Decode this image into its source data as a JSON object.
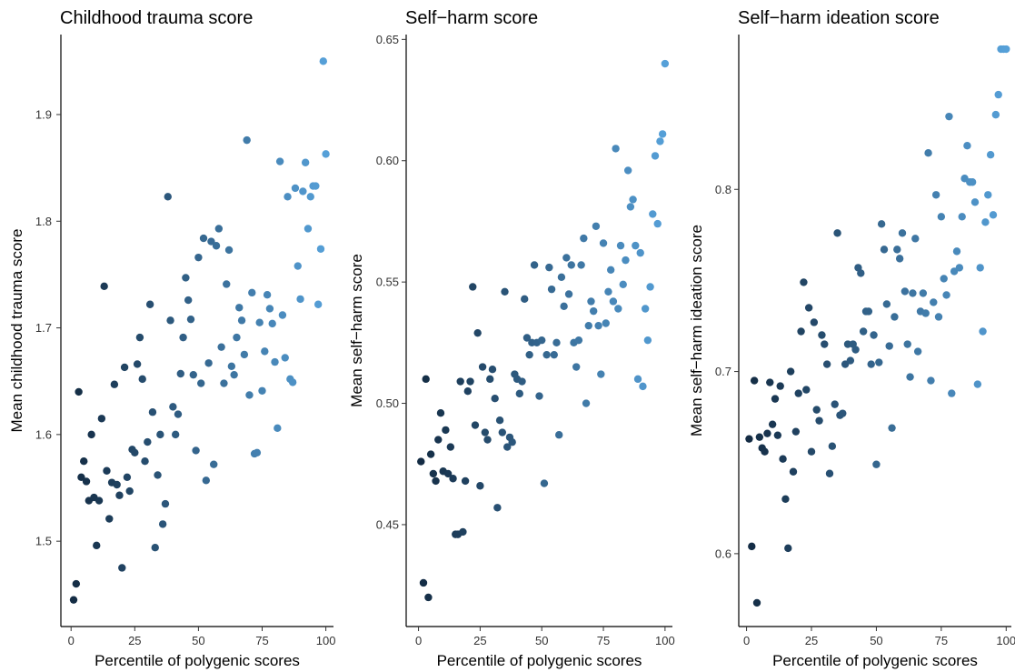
{
  "chart_data": [
    {
      "type": "scatter",
      "title": "Childhood trauma score",
      "xlabel": "Percentile of polygenic scores",
      "ylabel": "Mean childhood trauma score",
      "xlim": [
        -4,
        103
      ],
      "ylim": [
        1.42,
        1.975
      ],
      "xticks": [
        0,
        25,
        50,
        75,
        100
      ],
      "yticks": [
        1.5,
        1.6,
        1.7,
        1.8,
        1.9
      ],
      "ytick_labels": [
        "1.5",
        "1.6",
        "1.7",
        "1.8",
        "1.9"
      ],
      "grid": false,
      "legend": "none",
      "color_scale": {
        "low": "#132b43",
        "high": "#56a0d8"
      },
      "points": [
        [
          1,
          1.445
        ],
        [
          2,
          1.46
        ],
        [
          3,
          1.64
        ],
        [
          4,
          1.56
        ],
        [
          5,
          1.575
        ],
        [
          6,
          1.556
        ],
        [
          7,
          1.538
        ],
        [
          8,
          1.6
        ],
        [
          9,
          1.541
        ],
        [
          10,
          1.496
        ],
        [
          11,
          1.538
        ],
        [
          12,
          1.615
        ],
        [
          13,
          1.739
        ],
        [
          14,
          1.566
        ],
        [
          15,
          1.521
        ],
        [
          16,
          1.555
        ],
        [
          17,
          1.647
        ],
        [
          18,
          1.553
        ],
        [
          19,
          1.543
        ],
        [
          20,
          1.475
        ],
        [
          21,
          1.663
        ],
        [
          22,
          1.56
        ],
        [
          23,
          1.547
        ],
        [
          24,
          1.586
        ],
        [
          25,
          1.583
        ],
        [
          26,
          1.666
        ],
        [
          27,
          1.691
        ],
        [
          28,
          1.652
        ],
        [
          29,
          1.575
        ],
        [
          30,
          1.593
        ],
        [
          31,
          1.722
        ],
        [
          32,
          1.621
        ],
        [
          33,
          1.494
        ],
        [
          34,
          1.562
        ],
        [
          35,
          1.6
        ],
        [
          36,
          1.516
        ],
        [
          37,
          1.535
        ],
        [
          38,
          1.823
        ],
        [
          39,
          1.707
        ],
        [
          40,
          1.626
        ],
        [
          41,
          1.6
        ],
        [
          42,
          1.619
        ],
        [
          43,
          1.657
        ],
        [
          44,
          1.691
        ],
        [
          45,
          1.747
        ],
        [
          46,
          1.726
        ],
        [
          47,
          1.708
        ],
        [
          48,
          1.656
        ],
        [
          49,
          1.585
        ],
        [
          50,
          1.766
        ],
        [
          51,
          1.648
        ],
        [
          52,
          1.784
        ],
        [
          53,
          1.557
        ],
        [
          54,
          1.667
        ],
        [
          55,
          1.781
        ],
        [
          56,
          1.572
        ],
        [
          57,
          1.777
        ],
        [
          58,
          1.793
        ],
        [
          59,
          1.682
        ],
        [
          60,
          1.648
        ],
        [
          61,
          1.741
        ],
        [
          62,
          1.773
        ],
        [
          63,
          1.664
        ],
        [
          64,
          1.656
        ],
        [
          65,
          1.691
        ],
        [
          66,
          1.719
        ],
        [
          67,
          1.707
        ],
        [
          68,
          1.675
        ],
        [
          69,
          1.876
        ],
        [
          70,
          1.637
        ],
        [
          71,
          1.733
        ],
        [
          72,
          1.582
        ],
        [
          73,
          1.583
        ],
        [
          74,
          1.705
        ],
        [
          75,
          1.641
        ],
        [
          76,
          1.678
        ],
        [
          77,
          1.731
        ],
        [
          78,
          1.718
        ],
        [
          79,
          1.704
        ],
        [
          80,
          1.668
        ],
        [
          81,
          1.606
        ],
        [
          82,
          1.856
        ],
        [
          83,
          1.712
        ],
        [
          84,
          1.672
        ],
        [
          85,
          1.823
        ],
        [
          86,
          1.652
        ],
        [
          87,
          1.649
        ],
        [
          88,
          1.831
        ],
        [
          89,
          1.758
        ],
        [
          90,
          1.727
        ],
        [
          91,
          1.828
        ],
        [
          92,
          1.855
        ],
        [
          93,
          1.793
        ],
        [
          94,
          1.823
        ],
        [
          95,
          1.833
        ],
        [
          96,
          1.833
        ],
        [
          97,
          1.722
        ],
        [
          98,
          1.774
        ],
        [
          99,
          1.95
        ],
        [
          100,
          1.863
        ]
      ]
    },
    {
      "type": "scatter",
      "title": "Self−harm score",
      "xlabel": "Percentile of polygenic scores",
      "ylabel": "Mean self−harm score",
      "xlim": [
        -5,
        103
      ],
      "ylim": [
        0.408,
        0.652
      ],
      "xticks": [
        0,
        25,
        50,
        75,
        100
      ],
      "yticks": [
        0.45,
        0.5,
        0.55,
        0.6,
        0.65
      ],
      "ytick_labels": [
        "0.45",
        "0.50",
        "0.55",
        "0.60",
        "0.65"
      ],
      "grid": false,
      "legend": "none",
      "color_scale": {
        "low": "#132b43",
        "high": "#56a0d8"
      },
      "points": [
        [
          1,
          0.476
        ],
        [
          2,
          0.426
        ],
        [
          3,
          0.51
        ],
        [
          4,
          0.42
        ],
        [
          5,
          0.479
        ],
        [
          6,
          0.471
        ],
        [
          7,
          0.468
        ],
        [
          8,
          0.485
        ],
        [
          9,
          0.496
        ],
        [
          10,
          0.472
        ],
        [
          11,
          0.489
        ],
        [
          12,
          0.471
        ],
        [
          13,
          0.482
        ],
        [
          14,
          0.469
        ],
        [
          15,
          0.446
        ],
        [
          16,
          0.446
        ],
        [
          17,
          0.509
        ],
        [
          18,
          0.447
        ],
        [
          19,
          0.468
        ],
        [
          20,
          0.505
        ],
        [
          21,
          0.509
        ],
        [
          22,
          0.548
        ],
        [
          23,
          0.491
        ],
        [
          24,
          0.529
        ],
        [
          25,
          0.466
        ],
        [
          26,
          0.515
        ],
        [
          27,
          0.488
        ],
        [
          28,
          0.485
        ],
        [
          29,
          0.51
        ],
        [
          30,
          0.514
        ],
        [
          31,
          0.502
        ],
        [
          32,
          0.457
        ],
        [
          33,
          0.493
        ],
        [
          34,
          0.488
        ],
        [
          35,
          0.546
        ],
        [
          36,
          0.482
        ],
        [
          37,
          0.486
        ],
        [
          38,
          0.484
        ],
        [
          39,
          0.512
        ],
        [
          40,
          0.51
        ],
        [
          41,
          0.504
        ],
        [
          42,
          0.509
        ],
        [
          43,
          0.543
        ],
        [
          44,
          0.527
        ],
        [
          45,
          0.52
        ],
        [
          46,
          0.525
        ],
        [
          47,
          0.557
        ],
        [
          48,
          0.525
        ],
        [
          49,
          0.503
        ],
        [
          50,
          0.526
        ],
        [
          51,
          0.467
        ],
        [
          52,
          0.52
        ],
        [
          53,
          0.556
        ],
        [
          54,
          0.547
        ],
        [
          55,
          0.52
        ],
        [
          56,
          0.525
        ],
        [
          57,
          0.487
        ],
        [
          58,
          0.552
        ],
        [
          59,
          0.54
        ],
        [
          60,
          0.56
        ],
        [
          61,
          0.545
        ],
        [
          62,
          0.557
        ],
        [
          63,
          0.525
        ],
        [
          64,
          0.515
        ],
        [
          65,
          0.526
        ],
        [
          66,
          0.557
        ],
        [
          67,
          0.568
        ],
        [
          68,
          0.5
        ],
        [
          69,
          0.532
        ],
        [
          70,
          0.542
        ],
        [
          71,
          0.538
        ],
        [
          72,
          0.573
        ],
        [
          73,
          0.532
        ],
        [
          74,
          0.512
        ],
        [
          75,
          0.566
        ],
        [
          76,
          0.533
        ],
        [
          77,
          0.546
        ],
        [
          78,
          0.555
        ],
        [
          79,
          0.542
        ],
        [
          80,
          0.605
        ],
        [
          81,
          0.539
        ],
        [
          82,
          0.565
        ],
        [
          83,
          0.549
        ],
        [
          84,
          0.559
        ],
        [
          85,
          0.596
        ],
        [
          86,
          0.581
        ],
        [
          87,
          0.584
        ],
        [
          88,
          0.565
        ],
        [
          89,
          0.51
        ],
        [
          90,
          0.562
        ],
        [
          91,
          0.507
        ],
        [
          92,
          0.539
        ],
        [
          93,
          0.526
        ],
        [
          94,
          0.548
        ],
        [
          95,
          0.578
        ],
        [
          96,
          0.602
        ],
        [
          97,
          0.574
        ],
        [
          98,
          0.608
        ],
        [
          99,
          0.611
        ],
        [
          100,
          0.64
        ]
      ]
    },
    {
      "type": "scatter",
      "title": "Self−harm ideation score",
      "xlabel": "Percentile of polygenic scores",
      "ylabel": "Mean self−harm ideation score",
      "xlim": [
        -3,
        102
      ],
      "ylim": [
        0.56,
        0.885
      ],
      "xticks": [
        0,
        25,
        50,
        75,
        100
      ],
      "yticks": [
        0.6,
        0.7,
        0.8
      ],
      "ytick_labels": [
        "0.6",
        "0.7",
        "0.8"
      ],
      "grid": false,
      "legend": "none",
      "color_scale": {
        "low": "#132b43",
        "high": "#56a0d8"
      },
      "points": [
        [
          1,
          0.663
        ],
        [
          2,
          0.604
        ],
        [
          3,
          0.695
        ],
        [
          4,
          0.573
        ],
        [
          5,
          0.664
        ],
        [
          6,
          0.658
        ],
        [
          7,
          0.656
        ],
        [
          8,
          0.666
        ],
        [
          9,
          0.694
        ],
        [
          10,
          0.671
        ],
        [
          11,
          0.685
        ],
        [
          12,
          0.665
        ],
        [
          13,
          0.692
        ],
        [
          14,
          0.652
        ],
        [
          15,
          0.63
        ],
        [
          16,
          0.603
        ],
        [
          17,
          0.7
        ],
        [
          18,
          0.645
        ],
        [
          19,
          0.667
        ],
        [
          20,
          0.688
        ],
        [
          21,
          0.722
        ],
        [
          22,
          0.749
        ],
        [
          23,
          0.69
        ],
        [
          24,
          0.735
        ],
        [
          25,
          0.656
        ],
        [
          26,
          0.727
        ],
        [
          27,
          0.679
        ],
        [
          28,
          0.673
        ],
        [
          29,
          0.72
        ],
        [
          30,
          0.715
        ],
        [
          31,
          0.704
        ],
        [
          32,
          0.644
        ],
        [
          33,
          0.659
        ],
        [
          34,
          0.682
        ],
        [
          35,
          0.776
        ],
        [
          36,
          0.676
        ],
        [
          37,
          0.677
        ],
        [
          38,
          0.704
        ],
        [
          39,
          0.715
        ],
        [
          40,
          0.706
        ],
        [
          41,
          0.715
        ],
        [
          42,
          0.712
        ],
        [
          43,
          0.757
        ],
        [
          44,
          0.754
        ],
        [
          45,
          0.722
        ],
        [
          46,
          0.733
        ],
        [
          47,
          0.733
        ],
        [
          48,
          0.704
        ],
        [
          49,
          0.72
        ],
        [
          50,
          0.649
        ],
        [
          51,
          0.705
        ],
        [
          52,
          0.781
        ],
        [
          53,
          0.767
        ],
        [
          54,
          0.737
        ],
        [
          55,
          0.714
        ],
        [
          56,
          0.669
        ],
        [
          57,
          0.73
        ],
        [
          58,
          0.767
        ],
        [
          59,
          0.762
        ],
        [
          60,
          0.776
        ],
        [
          61,
          0.744
        ],
        [
          62,
          0.715
        ],
        [
          63,
          0.697
        ],
        [
          64,
          0.743
        ],
        [
          65,
          0.773
        ],
        [
          66,
          0.711
        ],
        [
          67,
          0.733
        ],
        [
          68,
          0.743
        ],
        [
          69,
          0.732
        ],
        [
          70,
          0.82
        ],
        [
          71,
          0.695
        ],
        [
          72,
          0.738
        ],
        [
          73,
          0.797
        ],
        [
          74,
          0.73
        ],
        [
          75,
          0.785
        ],
        [
          76,
          0.751
        ],
        [
          77,
          0.742
        ],
        [
          78,
          0.84
        ],
        [
          79,
          0.688
        ],
        [
          80,
          0.755
        ],
        [
          81,
          0.766
        ],
        [
          82,
          0.757
        ],
        [
          83,
          0.785
        ],
        [
          84,
          0.806
        ],
        [
          85,
          0.824
        ],
        [
          86,
          0.804
        ],
        [
          87,
          0.804
        ],
        [
          88,
          0.793
        ],
        [
          89,
          0.693
        ],
        [
          90,
          0.757
        ],
        [
          91,
          0.722
        ],
        [
          92,
          0.782
        ],
        [
          93,
          0.797
        ],
        [
          94,
          0.819
        ],
        [
          95,
          0.786
        ],
        [
          96,
          0.841
        ],
        [
          97,
          0.852
        ],
        [
          98,
          0.877
        ],
        [
          99,
          0.877
        ],
        [
          100,
          0.877
        ]
      ]
    }
  ]
}
